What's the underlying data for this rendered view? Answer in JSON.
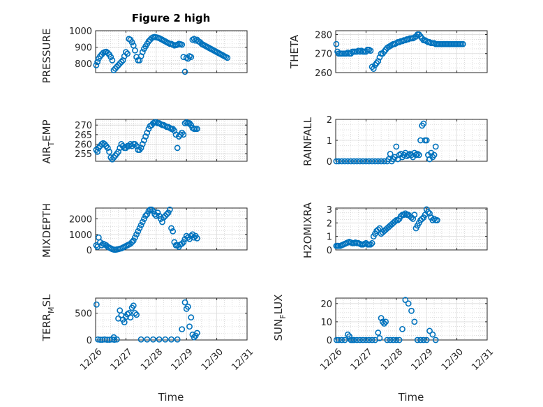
{
  "figure": {
    "title": "Figure 2 high",
    "marker_color": "#0072BD",
    "xlabel": "Time"
  },
  "chart_data": [
    {
      "type": "scatter",
      "title": "Figure 2 high",
      "ylabel": "PRESSURE",
      "xlabel": "",
      "xlim": [
        0,
        5
      ],
      "ylim": [
        745,
        1000
      ],
      "yticks": [
        800,
        900,
        1000
      ],
      "xticks": [],
      "grid": true,
      "x": [
        0.02,
        0.06,
        0.1,
        0.15,
        0.2,
        0.25,
        0.3,
        0.35,
        0.4,
        0.45,
        0.5,
        0.55,
        0.6,
        0.65,
        0.7,
        0.75,
        0.8,
        0.85,
        0.9,
        0.95,
        1.0,
        1.05,
        1.1,
        1.15,
        1.2,
        1.25,
        1.3,
        1.35,
        1.4,
        1.45,
        1.5,
        1.55,
        1.6,
        1.65,
        1.7,
        1.75,
        1.8,
        1.85,
        1.9,
        1.95,
        2.0,
        2.05,
        2.1,
        2.15,
        2.2,
        2.25,
        2.3,
        2.35,
        2.4,
        2.45,
        2.5,
        2.55,
        2.6,
        2.65,
        2.7,
        2.75,
        2.8,
        2.85,
        2.9,
        2.95,
        3.0,
        3.05,
        3.1,
        3.15,
        3.2,
        3.25,
        3.3,
        3.35,
        3.4,
        3.45,
        3.5,
        3.55,
        3.6,
        3.65,
        3.7,
        3.75,
        3.8,
        3.85,
        3.9,
        3.95,
        4.0,
        4.05,
        4.1,
        4.15,
        4.2,
        4.25,
        4.3,
        4.35
      ],
      "y": [
        790,
        810,
        830,
        845,
        855,
        865,
        870,
        872,
        865,
        855,
        840,
        820,
        760,
        770,
        780,
        790,
        800,
        810,
        820,
        845,
        870,
        860,
        950,
        945,
        930,
        910,
        880,
        840,
        820,
        820,
        845,
        870,
        890,
        905,
        920,
        935,
        945,
        955,
        960,
        962,
        960,
        958,
        955,
        950,
        945,
        940,
        935,
        930,
        925,
        920,
        920,
        915,
        910,
        912,
        915,
        920,
        918,
        915,
        840,
        750,
        835,
        830,
        845,
        840,
        945,
        950,
        940,
        945,
        935,
        930,
        920,
        915,
        910,
        905,
        900,
        895,
        890,
        885,
        880,
        875,
        870,
        865,
        860,
        855,
        850,
        845,
        840,
        835
      ],
      "n_shown": 70
    },
    {
      "type": "scatter",
      "title": "",
      "ylabel": "THETA",
      "xlabel": "",
      "xlim": [
        0,
        5
      ],
      "ylim": [
        260,
        282
      ],
      "yticks": [
        260,
        270,
        280
      ],
      "xticks": [],
      "grid": true,
      "x": [
        0.02,
        0.06,
        0.1,
        0.15,
        0.2,
        0.25,
        0.3,
        0.35,
        0.4,
        0.45,
        0.5,
        0.55,
        0.6,
        0.65,
        0.7,
        0.75,
        0.8,
        0.85,
        0.9,
        0.95,
        1.0,
        1.05,
        1.1,
        1.15,
        1.2,
        1.25,
        1.3,
        1.35,
        1.4,
        1.45,
        1.5,
        1.55,
        1.6,
        1.65,
        1.7,
        1.75,
        1.8,
        1.85,
        1.9,
        1.95,
        2.0,
        2.05,
        2.1,
        2.15,
        2.2,
        2.25,
        2.3,
        2.35,
        2.4,
        2.45,
        2.5,
        2.55,
        2.6,
        2.65,
        2.7,
        2.75,
        2.8,
        2.85,
        2.9,
        2.95,
        3.0,
        3.05,
        3.1,
        3.15,
        3.2,
        3.25,
        3.3,
        3.35,
        3.4,
        3.45,
        3.5,
        3.55,
        3.6,
        3.65,
        3.7,
        3.75,
        3.8,
        3.85,
        3.9,
        3.95,
        4.0,
        4.05,
        4.1,
        4.15,
        4.2
      ],
      "y": [
        275,
        271,
        270,
        270,
        270,
        270,
        270,
        270,
        270.5,
        270,
        270,
        271,
        271,
        271,
        271,
        271.5,
        271,
        271.5,
        271,
        271,
        271,
        272,
        272,
        271.5,
        263,
        262,
        264,
        265,
        266,
        268,
        270,
        270,
        271,
        272,
        273,
        273.5,
        274,
        274.5,
        275,
        275,
        275.5,
        276,
        276,
        276.5,
        276.5,
        277,
        277,
        277.5,
        277.5,
        278,
        278,
        278,
        278.5,
        279,
        280,
        280,
        279,
        278,
        277,
        277,
        276.5,
        276,
        276,
        275.5,
        275.5,
        275.5,
        275,
        275,
        275,
        275,
        275,
        275,
        275,
        275,
        275,
        275,
        275,
        275,
        275,
        275,
        275,
        275,
        275,
        275,
        275
      ],
      "n_shown": 66
    },
    {
      "type": "scatter",
      "title": "",
      "ylabel": "AIR_TEMP",
      "xlabel": "",
      "xlim": [
        0,
        5
      ],
      "ylim": [
        251,
        273
      ],
      "yticks": [
        255,
        260,
        265,
        270
      ],
      "xticks": [],
      "grid": true,
      "x": [
        0.02,
        0.06,
        0.1,
        0.15,
        0.2,
        0.25,
        0.3,
        0.35,
        0.4,
        0.45,
        0.5,
        0.55,
        0.6,
        0.65,
        0.7,
        0.75,
        0.8,
        0.85,
        0.9,
        0.95,
        1.0,
        1.05,
        1.1,
        1.15,
        1.2,
        1.25,
        1.3,
        1.35,
        1.4,
        1.45,
        1.5,
        1.55,
        1.6,
        1.65,
        1.7,
        1.75,
        1.8,
        1.85,
        1.9,
        1.95,
        2.0,
        2.05,
        2.1,
        2.15,
        2.2,
        2.25,
        2.3,
        2.35,
        2.4,
        2.45,
        2.5,
        2.55,
        2.6,
        2.65,
        2.7,
        2.75,
        2.8,
        2.85,
        2.9,
        2.95,
        3.0,
        3.05,
        3.1,
        3.15,
        3.2,
        3.25,
        3.3,
        3.35
      ],
      "y": [
        257,
        256,
        258,
        259,
        260,
        260.5,
        260,
        259,
        258,
        256,
        253,
        252,
        253,
        254,
        255,
        256,
        258,
        260,
        259,
        258,
        258,
        259,
        259,
        260,
        259,
        260,
        260,
        259,
        257,
        257,
        258,
        260,
        262,
        264,
        266,
        268,
        269.5,
        270,
        271,
        271.5,
        271.5,
        271,
        271,
        270.5,
        270,
        270,
        269.5,
        269,
        269,
        268.5,
        268,
        268,
        267,
        265,
        258,
        264,
        265,
        266,
        265,
        271,
        271.5,
        271,
        271,
        270,
        268.5,
        268,
        268,
        268
      ],
      "n_shown": 60
    },
    {
      "type": "scatter",
      "title": "",
      "ylabel": "RAINFALL",
      "xlabel": "",
      "xlim": [
        0,
        5
      ],
      "ylim": [
        0,
        2
      ],
      "yticks": [
        0,
        1,
        2
      ],
      "xticks": [],
      "grid": true,
      "x": [
        0.02,
        0.1,
        0.2,
        0.3,
        0.4,
        0.5,
        0.6,
        0.7,
        0.8,
        0.9,
        1.0,
        1.1,
        1.2,
        1.3,
        1.4,
        1.5,
        1.6,
        1.7,
        1.75,
        1.8,
        1.85,
        1.9,
        1.95,
        2.0,
        2.05,
        2.1,
        2.15,
        2.2,
        2.25,
        2.3,
        2.35,
        2.4,
        2.45,
        2.5,
        2.55,
        2.6,
        2.65,
        2.7,
        2.75,
        2.8,
        2.85,
        2.9,
        2.95,
        3.0,
        3.05,
        3.1,
        3.15,
        3.2,
        3.25,
        3.3
      ],
      "y": [
        0,
        0,
        0,
        0,
        0,
        0,
        0,
        0,
        0,
        0,
        0,
        0,
        0,
        0,
        0,
        0,
        0,
        0,
        0.1,
        0.35,
        0,
        0.1,
        0.2,
        0.7,
        0.1,
        0.3,
        0.35,
        0.2,
        0.3,
        0.4,
        0.25,
        0.3,
        0.35,
        0.3,
        0.2,
        0.4,
        0.3,
        0.35,
        0.3,
        1.0,
        1.7,
        1.8,
        1.0,
        1.0,
        0.3,
        0.1,
        0.4,
        0.2,
        0.3,
        0.7
      ],
      "n_shown": 50
    },
    {
      "type": "scatter",
      "title": "",
      "ylabel": "MIXDEPTH",
      "xlabel": "",
      "xlim": [
        0,
        5
      ],
      "ylim": [
        0,
        2700
      ],
      "yticks": [
        0,
        1000,
        2000
      ],
      "xticks": [],
      "grid": true,
      "x": [
        0.02,
        0.06,
        0.1,
        0.15,
        0.2,
        0.25,
        0.3,
        0.35,
        0.4,
        0.45,
        0.5,
        0.55,
        0.6,
        0.65,
        0.7,
        0.75,
        0.8,
        0.85,
        0.9,
        0.95,
        1.0,
        1.05,
        1.1,
        1.15,
        1.2,
        1.25,
        1.3,
        1.35,
        1.4,
        1.45,
        1.5,
        1.55,
        1.6,
        1.65,
        1.7,
        1.75,
        1.8,
        1.85,
        1.9,
        1.95,
        2.0,
        2.05,
        2.1,
        2.15,
        2.2,
        2.25,
        2.3,
        2.35,
        2.4,
        2.45,
        2.5,
        2.55,
        2.6,
        2.65,
        2.7,
        2.75,
        2.8,
        2.85,
        2.9,
        2.95,
        3.0,
        3.05,
        3.1,
        3.15,
        3.2,
        3.25,
        3.3,
        3.35
      ],
      "y": [
        300,
        200,
        800,
        500,
        300,
        400,
        350,
        300,
        200,
        150,
        100,
        50,
        20,
        10,
        30,
        50,
        80,
        100,
        150,
        200,
        250,
        300,
        350,
        400,
        500,
        600,
        800,
        1000,
        1200,
        1400,
        1600,
        1800,
        2000,
        2200,
        2300,
        2500,
        2600,
        2600,
        2500,
        2300,
        2200,
        2400,
        2200,
        2000,
        1800,
        2100,
        2200,
        2300,
        2400,
        2600,
        1400,
        1200,
        500,
        300,
        300,
        200,
        350,
        400,
        500,
        700,
        900,
        800,
        700,
        900,
        1000,
        800,
        900,
        750
      ],
      "n_shown": 64
    },
    {
      "type": "scatter",
      "title": "",
      "ylabel": "H2OMIXRA",
      "xlabel": "",
      "xlim": [
        0,
        5
      ],
      "ylim": [
        0,
        3.1
      ],
      "yticks": [
        0,
        1,
        2,
        3
      ],
      "xticks": [],
      "grid": true,
      "x": [
        0.02,
        0.06,
        0.1,
        0.15,
        0.2,
        0.25,
        0.3,
        0.35,
        0.4,
        0.45,
        0.5,
        0.55,
        0.6,
        0.65,
        0.7,
        0.75,
        0.8,
        0.85,
        0.9,
        0.95,
        1.0,
        1.05,
        1.1,
        1.15,
        1.2,
        1.25,
        1.3,
        1.35,
        1.4,
        1.45,
        1.5,
        1.55,
        1.6,
        1.65,
        1.7,
        1.75,
        1.8,
        1.85,
        1.9,
        1.95,
        2.0,
        2.05,
        2.1,
        2.15,
        2.2,
        2.25,
        2.3,
        2.35,
        2.4,
        2.45,
        2.5,
        2.55,
        2.6,
        2.65,
        2.7,
        2.75,
        2.8,
        2.85,
        2.9,
        2.95,
        3.0,
        3.05,
        3.1,
        3.15,
        3.2,
        3.25,
        3.3,
        3.35
      ],
      "y": [
        0.3,
        0.3,
        0.3,
        0.3,
        0.35,
        0.4,
        0.45,
        0.5,
        0.55,
        0.6,
        0.55,
        0.5,
        0.5,
        0.55,
        0.5,
        0.5,
        0.45,
        0.4,
        0.4,
        0.45,
        0.5,
        0.4,
        0.4,
        0.4,
        0.5,
        1.0,
        1.2,
        1.4,
        1.5,
        1.6,
        1.2,
        1.3,
        1.4,
        1.5,
        1.6,
        1.7,
        1.8,
        1.9,
        2.0,
        2.1,
        2.2,
        2.2,
        2.3,
        2.5,
        2.6,
        2.6,
        2.7,
        2.6,
        2.6,
        2.5,
        2.4,
        2.3,
        2.6,
        1.6,
        1.8,
        2.0,
        2.2,
        2.3,
        2.4,
        2.6,
        3.0,
        2.8,
        2.7,
        2.4,
        2.2,
        2.3,
        2.2,
        2.2
      ],
      "n_shown": 64
    },
    {
      "type": "scatter",
      "title": "",
      "ylabel": "TERR_MSL",
      "xlabel": "Time",
      "xlim": [
        0,
        5
      ],
      "ylim": [
        0,
        780
      ],
      "yticks": [
        0,
        500
      ],
      "xticks": [
        "12/26",
        "12/27",
        "12/28",
        "12/29",
        "12/30",
        "12/31"
      ],
      "grid": true,
      "x": [
        0.03,
        0.08,
        0.15,
        0.22,
        0.3,
        0.38,
        0.46,
        0.54,
        0.6,
        0.62,
        0.7,
        0.75,
        0.8,
        0.85,
        0.9,
        0.95,
        1.0,
        1.05,
        1.1,
        1.15,
        1.2,
        1.25,
        1.3,
        1.35,
        1.5,
        1.7,
        1.9,
        2.1,
        2.3,
        2.5,
        2.7,
        2.85,
        2.95,
        3.0,
        3.05,
        3.1,
        3.15,
        3.2,
        3.25,
        3.3,
        3.35
      ],
      "y": [
        660,
        10,
        5,
        5,
        10,
        5,
        5,
        10,
        50,
        5,
        10,
        400,
        550,
        460,
        380,
        330,
        430,
        480,
        500,
        420,
        600,
        640,
        500,
        470,
        10,
        10,
        10,
        10,
        10,
        10,
        10,
        200,
        700,
        580,
        620,
        250,
        420,
        100,
        50,
        80,
        130
      ],
      "n_shown": 41
    },
    {
      "type": "scatter",
      "title": "",
      "ylabel": "SUN_FLUX",
      "xlabel": "Time",
      "xlim": [
        0,
        5
      ],
      "ylim": [
        0,
        23
      ],
      "yticks": [
        0,
        10,
        20
      ],
      "xticks": [
        "12/26",
        "12/27",
        "12/28",
        "12/29",
        "12/30",
        "12/31"
      ],
      "grid": true,
      "x": [
        0.03,
        0.1,
        0.2,
        0.3,
        0.4,
        0.45,
        0.5,
        0.55,
        0.6,
        0.7,
        0.8,
        0.9,
        1.0,
        1.1,
        1.2,
        1.3,
        1.4,
        1.45,
        1.5,
        1.55,
        1.6,
        1.65,
        1.7,
        1.8,
        1.9,
        2.0,
        2.1,
        2.2,
        2.3,
        2.4,
        2.5,
        2.6,
        2.7,
        2.8,
        2.9,
        3.0,
        3.1,
        3.2,
        3.3
      ],
      "y": [
        0,
        0,
        0,
        0,
        3,
        2,
        0,
        0,
        0,
        0,
        0,
        0,
        0,
        0,
        0,
        0,
        4,
        1,
        12,
        10,
        9,
        10,
        0,
        0,
        0,
        0,
        0,
        6,
        22,
        20,
        16,
        10,
        0,
        0,
        0,
        0,
        5,
        3,
        0
      ],
      "n_shown": 39
    }
  ]
}
